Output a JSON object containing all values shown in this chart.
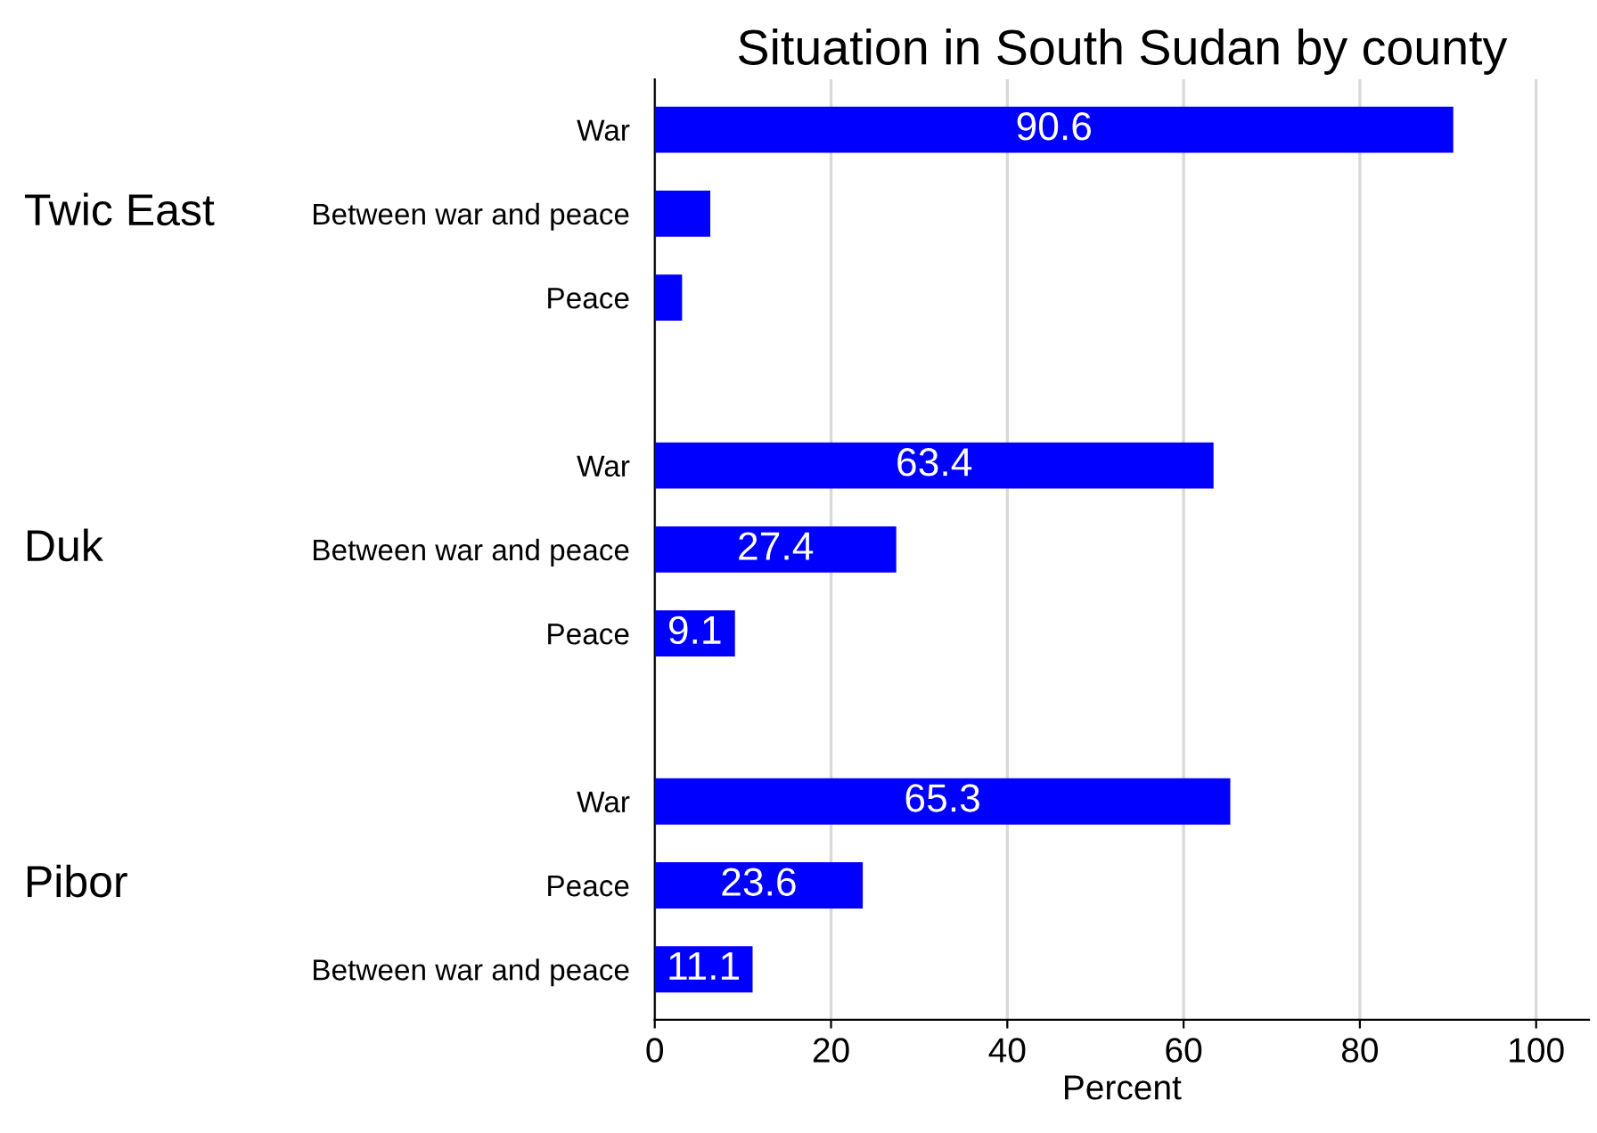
{
  "chart_data": {
    "type": "bar",
    "orientation": "horizontal",
    "title": "Situation in South Sudan by county",
    "xlabel": "Percent",
    "categories": [
      "War",
      "Between war and peace",
      "Peace",
      null,
      "War",
      "Between war and peace",
      "Peace",
      null,
      "War",
      "Peace",
      "Between war and peace"
    ],
    "values": [
      90.6,
      6.3,
      3.1,
      null,
      63.4,
      27.4,
      9.1,
      null,
      65.3,
      23.6,
      11.1
    ],
    "value_labels": [
      "90.6",
      null,
      null,
      null,
      "63.4",
      "27.4",
      "9.1",
      null,
      "65.3",
      "23.6",
      "11.1"
    ],
    "color": "#0000ff",
    "annotations": [
      "Twic East",
      "Duk",
      "Pibor"
    ],
    "xlim": [
      0,
      106
    ],
    "xticks": [
      0,
      20,
      40,
      60,
      80,
      100
    ],
    "grid": "x"
  }
}
